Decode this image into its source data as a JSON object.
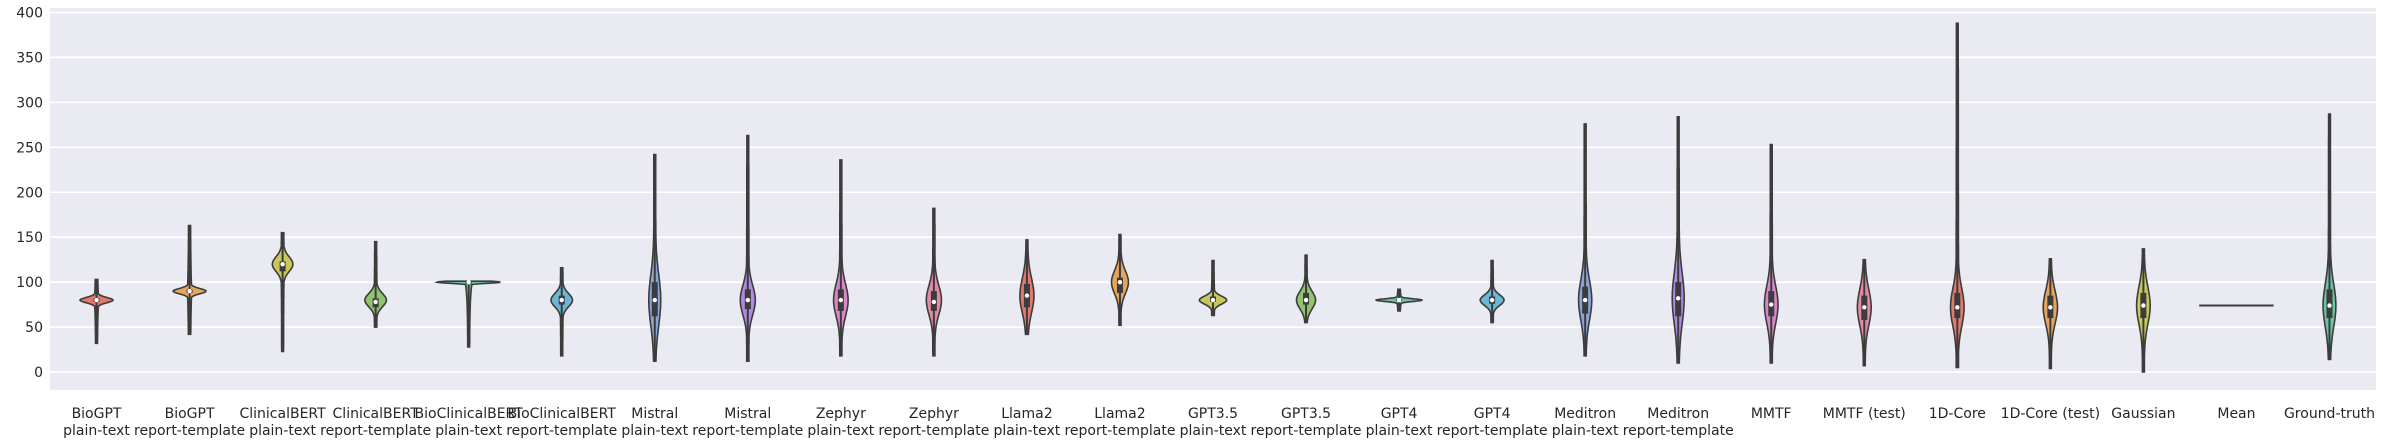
{
  "colors": {
    "background": "#eaeaf2",
    "grid": "#ffffff",
    "outline": "#3c3c3c",
    "palette": [
      "#e07a6e",
      "#e5a65c",
      "#c9c75c",
      "#8fc36d",
      "#6cc3a6",
      "#6bb7d6",
      "#8aa5dc",
      "#b08ae0",
      "#d887c9",
      "#e38aa6"
    ]
  },
  "chart_data": {
    "type": "violin",
    "ylim": [
      -20,
      405
    ],
    "yticks": [
      0,
      50,
      100,
      150,
      200,
      250,
      300,
      350,
      400
    ],
    "grid": true,
    "categories": [
      {
        "line1": "BioGPT",
        "line2": "plain-text",
        "min": 32,
        "max": 103,
        "median": 80,
        "q1": 78,
        "q3": 82,
        "mode": 80
      },
      {
        "line1": "BioGPT",
        "line2": "report-template",
        "min": 42,
        "max": 163,
        "median": 90,
        "q1": 88,
        "q3": 92,
        "mode": 90
      },
      {
        "line1": "ClinicalBERT",
        "line2": "plain-text",
        "min": 23,
        "max": 155,
        "median": 120,
        "q1": 112,
        "q3": 123,
        "mode": 120
      },
      {
        "line1": "ClinicalBERT",
        "line2": "report-template",
        "min": 50,
        "max": 145,
        "median": 78,
        "q1": 72,
        "q3": 82,
        "mode": 80
      },
      {
        "line1": "BioClinicalBERT",
        "line2": "plain-text",
        "min": 28,
        "max": 101,
        "median": 100,
        "q1": 99,
        "q3": 100,
        "mode": 100
      },
      {
        "line1": "BioClinicalBERT",
        "line2": "report-template",
        "min": 18,
        "max": 116,
        "median": 80,
        "q1": 75,
        "q3": 85,
        "mode": 80
      },
      {
        "line1": "Mistral",
        "line2": "plain-text",
        "min": 12,
        "max": 242,
        "median": 80,
        "q1": 62,
        "q3": 100,
        "mode": 80
      },
      {
        "line1": "Mistral",
        "line2": "report-template",
        "min": 12,
        "max": 263,
        "median": 80,
        "q1": 70,
        "q3": 92,
        "mode": 80
      },
      {
        "line1": "Zephyr",
        "line2": "plain-text",
        "min": 18,
        "max": 236,
        "median": 80,
        "q1": 68,
        "q3": 92,
        "mode": 80
      },
      {
        "line1": "Zephyr",
        "line2": "report-template",
        "min": 18,
        "max": 182,
        "median": 78,
        "q1": 68,
        "q3": 90,
        "mode": 80
      },
      {
        "line1": "Llama2",
        "line2": "plain-text",
        "min": 42,
        "max": 147,
        "median": 85,
        "q1": 72,
        "q3": 98,
        "mode": 85
      },
      {
        "line1": "Llama2",
        "line2": "report-template",
        "min": 52,
        "max": 153,
        "median": 100,
        "q1": 88,
        "q3": 105,
        "mode": 100
      },
      {
        "line1": "GPT3.5",
        "line2": "plain-text",
        "min": 63,
        "max": 124,
        "median": 80,
        "q1": 78,
        "q3": 84,
        "mode": 80
      },
      {
        "line1": "GPT3.5",
        "line2": "report-template",
        "min": 55,
        "max": 130,
        "median": 80,
        "q1": 75,
        "q3": 88,
        "mode": 80
      },
      {
        "line1": "GPT4",
        "line2": "plain-text",
        "min": 68,
        "max": 92,
        "median": 80,
        "q1": 79,
        "q3": 81,
        "mode": 80
      },
      {
        "line1": "GPT4",
        "line2": "report-template",
        "min": 55,
        "max": 124,
        "median": 80,
        "q1": 76,
        "q3": 84,
        "mode": 80
      },
      {
        "line1": "Meditron",
        "line2": "plain-text",
        "min": 18,
        "max": 276,
        "median": 80,
        "q1": 65,
        "q3": 95,
        "mode": 80
      },
      {
        "line1": "Meditron",
        "line2": "report-template",
        "min": 10,
        "max": 284,
        "median": 82,
        "q1": 62,
        "q3": 100,
        "mode": 82
      },
      {
        "line1": "MMTF",
        "line2": "",
        "min": 10,
        "max": 253,
        "median": 75,
        "q1": 62,
        "q3": 90,
        "mode": 75
      },
      {
        "line1": "MMTF (test)",
        "line2": "",
        "min": 7,
        "max": 125,
        "median": 72,
        "q1": 58,
        "q3": 85,
        "mode": 72
      },
      {
        "line1": "1D-Core",
        "line2": "",
        "min": 5,
        "max": 388,
        "median": 72,
        "q1": 60,
        "q3": 88,
        "mode": 72
      },
      {
        "line1": "1D-Core (test)",
        "line2": "",
        "min": 4,
        "max": 126,
        "median": 72,
        "q1": 60,
        "q3": 85,
        "mode": 72
      },
      {
        "line1": "Gaussian",
        "line2": "",
        "min": 0,
        "max": 137,
        "median": 74,
        "q1": 60,
        "q3": 88,
        "mode": 74
      },
      {
        "line1": "Mean",
        "line2": "",
        "min": 74,
        "max": 74,
        "median": 74,
        "q1": 74,
        "q3": 74,
        "mode": 74
      },
      {
        "line1": "Ground-truth",
        "line2": "",
        "min": 14,
        "max": 287,
        "median": 74,
        "q1": 60,
        "q3": 92,
        "mode": 74
      }
    ]
  }
}
